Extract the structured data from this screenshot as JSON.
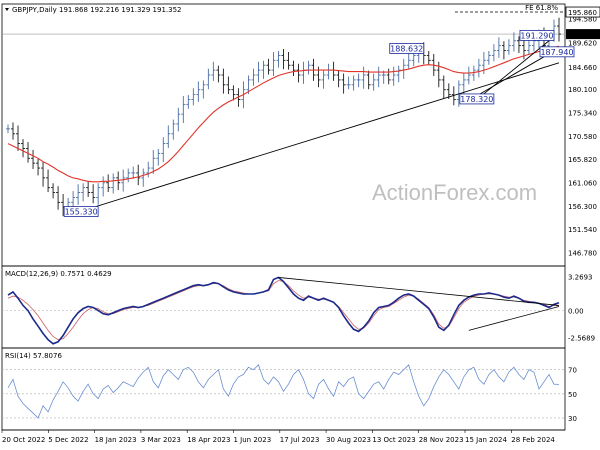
{
  "chart_data": [
    {
      "type": "candlestick",
      "title": "GBPJPY,Daily  191.868 192.216 191.329 191.352",
      "ylim": [
        144.0,
        197.5
      ],
      "y_ticks": [
        "195.860",
        "194.580",
        "189.620",
        "184.660",
        "180.100",
        "175.340",
        "170.580",
        "165.820",
        "161.060",
        "156.300",
        "151.540",
        "146.780"
      ],
      "current_price": "191.352",
      "ref_line": {
        "label": "FE 61.8%",
        "value": "195.860"
      },
      "annotations": [
        {
          "text": "155.330",
          "x": 15,
          "y": 155.33
        },
        {
          "text": "188.632",
          "x": 80,
          "y": 188.632
        },
        {
          "text": "178.320",
          "x": 94,
          "y": 178.32
        },
        {
          "text": "191.290",
          "x": 106,
          "y": 191.29
        },
        {
          "text": "187.940",
          "x": 110,
          "y": 187.94
        }
      ],
      "watermark": "ActionForex.com",
      "series": [
        {
          "values": [
            172,
            171,
            169,
            168,
            166,
            165,
            164,
            162,
            160,
            159,
            157,
            156,
            157,
            158,
            159,
            160,
            159,
            158,
            160,
            161,
            160,
            162,
            161,
            162,
            163,
            163,
            162,
            163,
            164,
            166,
            167,
            169,
            171,
            173,
            175,
            177,
            178,
            179,
            180,
            181,
            183,
            184,
            183,
            181,
            180,
            179,
            178,
            180,
            182,
            183,
            184,
            185,
            184,
            186,
            187,
            186,
            185,
            184,
            183,
            184,
            185,
            183,
            182,
            183,
            184,
            183,
            182,
            181,
            181,
            182,
            182,
            183,
            181,
            182,
            183,
            183,
            182,
            183,
            184,
            185,
            186,
            187,
            188,
            187,
            186,
            184,
            182,
            180,
            179,
            178,
            181,
            182,
            183,
            184,
            185,
            186,
            187,
            188,
            189,
            188,
            189,
            190,
            189,
            188,
            189,
            190,
            191,
            189,
            191,
            193,
            191.35
          ]
        },
        {
          "values": [
            169,
            168.5,
            168,
            167.5,
            167,
            166.5,
            166,
            165.3,
            164.8,
            164.2,
            163.5,
            163,
            162.4,
            162,
            161.8,
            161.5,
            161.3,
            161.2,
            161.2,
            161.3,
            161.3,
            161.4,
            161.5,
            161.6,
            161.8,
            162,
            162.2,
            162.5,
            162.8,
            163.3,
            163.8,
            164.5,
            165.3,
            166.3,
            167.4,
            168.6,
            169.8,
            171,
            172.2,
            173.3,
            174.4,
            175.4,
            176.2,
            176.9,
            177.5,
            178,
            178.5,
            179,
            179.6,
            180.2,
            180.8,
            181.4,
            181.9,
            182.4,
            182.9,
            183.2,
            183.5,
            183.7,
            183.8,
            183.9,
            184,
            184,
            184,
            184,
            184,
            184,
            183.9,
            183.8,
            183.7,
            183.7,
            183.7,
            183.7,
            183.6,
            183.6,
            183.6,
            183.6,
            183.6,
            183.7,
            183.8,
            184,
            184.2,
            184.5,
            184.8,
            185,
            185.1,
            185,
            184.8,
            184.5,
            184.1,
            183.7,
            183.5,
            183.4,
            183.4,
            183.5,
            183.7,
            184,
            184.3,
            184.7,
            185.1,
            185.5,
            185.9,
            186.3,
            186.6,
            186.9,
            187.2,
            187.5,
            187.8,
            188,
            188.3,
            188.6,
            188.9
          ]
        }
      ]
    },
    {
      "type": "line",
      "title": "MACD(12,26,9) 0.7571 0.4629",
      "ylim": [
        -3.6,
        4.3
      ],
      "y_ticks": [
        "3.2693",
        "0.00",
        "-2.5689"
      ],
      "series": [
        {
          "values": [
            1.5,
            1.8,
            1.2,
            0.5,
            0,
            -0.8,
            -1.5,
            -2.2,
            -2.8,
            -3.2,
            -3.0,
            -2.4,
            -1.6,
            -0.8,
            -0.2,
            0.2,
            0.4,
            0.3,
            0,
            -0.3,
            -0.4,
            -0.2,
            0,
            0.2,
            0.3,
            0.4,
            0.3,
            0.4,
            0.6,
            0.8,
            1.0,
            1.2,
            1.4,
            1.6,
            1.8,
            2.0,
            2.2,
            2.4,
            2.5,
            2.4,
            2.5,
            2.7,
            2.6,
            2.3,
            2.0,
            1.8,
            1.7,
            1.6,
            1.6,
            1.6,
            1.7,
            1.8,
            2.0,
            3.0,
            3.2,
            2.8,
            2.2,
            1.6,
            1.2,
            1.0,
            1.4,
            1.2,
            1.0,
            1.2,
            1.0,
            0.8,
            0.3,
            -0.5,
            -1.2,
            -1.8,
            -2.0,
            -1.6,
            -1.0,
            -0.2,
            0.3,
            0.4,
            0.5,
            0.8,
            1.2,
            1.5,
            1.6,
            1.4,
            1.0,
            0.6,
            0.2,
            -0.6,
            -1.6,
            -1.9,
            -1.4,
            -0.4,
            0.5,
            1.0,
            1.3,
            1.5,
            1.6,
            1.6,
            1.7,
            1.6,
            1.5,
            1.3,
            1.2,
            1.4,
            1.2,
            0.9,
            0.8,
            0.8,
            0.7,
            0.5,
            0.3,
            0.6,
            0.76
          ]
        },
        {
          "values": [
            1.2,
            1.4,
            1.3,
            1.0,
            0.6,
            0.1,
            -0.5,
            -1.2,
            -1.9,
            -2.5,
            -2.8,
            -2.7,
            -2.2,
            -1.6,
            -0.9,
            -0.3,
            0.1,
            0.3,
            0.2,
            -0.1,
            -0.3,
            -0.3,
            -0.1,
            0.1,
            0.2,
            0.3,
            0.3,
            0.4,
            0.5,
            0.7,
            0.9,
            1.1,
            1.3,
            1.5,
            1.7,
            1.9,
            2.1,
            2.3,
            2.4,
            2.4,
            2.5,
            2.6,
            2.6,
            2.4,
            2.1,
            1.9,
            1.8,
            1.7,
            1.6,
            1.6,
            1.7,
            1.8,
            1.9,
            2.6,
            2.9,
            2.8,
            2.4,
            1.9,
            1.5,
            1.2,
            1.3,
            1.2,
            1.1,
            1.1,
            1.0,
            0.8,
            0.4,
            -0.2,
            -0.8,
            -1.4,
            -1.8,
            -1.7,
            -1.2,
            -0.5,
            0.1,
            0.3,
            0.4,
            0.7,
            1.0,
            1.3,
            1.5,
            1.4,
            1.1,
            0.7,
            0.3,
            -0.4,
            -1.3,
            -1.7,
            -1.5,
            -0.7,
            0.2,
            0.8,
            1.1,
            1.4,
            1.5,
            1.6,
            1.6,
            1.6,
            1.5,
            1.4,
            1.3,
            1.3,
            1.2,
            1.0,
            0.9,
            0.8,
            0.7,
            0.6,
            0.4,
            0.5,
            0.46
          ]
        }
      ]
    },
    {
      "type": "line",
      "title": "RSI(14) 57.8076",
      "ylim": [
        20,
        88
      ],
      "y_ticks": [
        "70",
        "50",
        "30"
      ],
      "series": [
        {
          "values": [
            55,
            62,
            48,
            42,
            38,
            34,
            30,
            40,
            35,
            45,
            52,
            60,
            55,
            48,
            44,
            52,
            58,
            50,
            46,
            54,
            57,
            51,
            55,
            60,
            58,
            56,
            63,
            68,
            72,
            60,
            55,
            65,
            70,
            66,
            62,
            70,
            72,
            68,
            60,
            55,
            62,
            66,
            70,
            54,
            48,
            58,
            64,
            66,
            72,
            70,
            74,
            62,
            58,
            64,
            60,
            52,
            58,
            66,
            70,
            62,
            50,
            46,
            58,
            62,
            54,
            48,
            60,
            56,
            62,
            64,
            50,
            46,
            52,
            58,
            60,
            54,
            62,
            68,
            66,
            70,
            74,
            60,
            48,
            40,
            46,
            56,
            64,
            70,
            66,
            60,
            54,
            64,
            70,
            72,
            62,
            58,
            66,
            70,
            64,
            60,
            68,
            72,
            66,
            62,
            70,
            68,
            54,
            60,
            66,
            58,
            57.8
          ]
        }
      ]
    }
  ],
  "x_labels": [
    "20 Oct 2022",
    "5 Dec 2022",
    "18 Jan 2023",
    "3 Mar 2023",
    "18 Apr 2023",
    "1 Jun 2023",
    "17 Jul 2023",
    "30 Aug 2023",
    "13 Oct 2023",
    "28 Nov 2023",
    "15 Jan 2024",
    "28 Feb 2024"
  ],
  "colors": {
    "bull": "#4a6fa5",
    "bear": "#1a1a1a",
    "ma": "#e0342a",
    "macd": "#1a2a8c",
    "signal": "#d06060",
    "rsi": "#6a8fd0",
    "trend": "#000000",
    "grid": "#b0b0b0",
    "label_border": "#1a2a9c"
  }
}
